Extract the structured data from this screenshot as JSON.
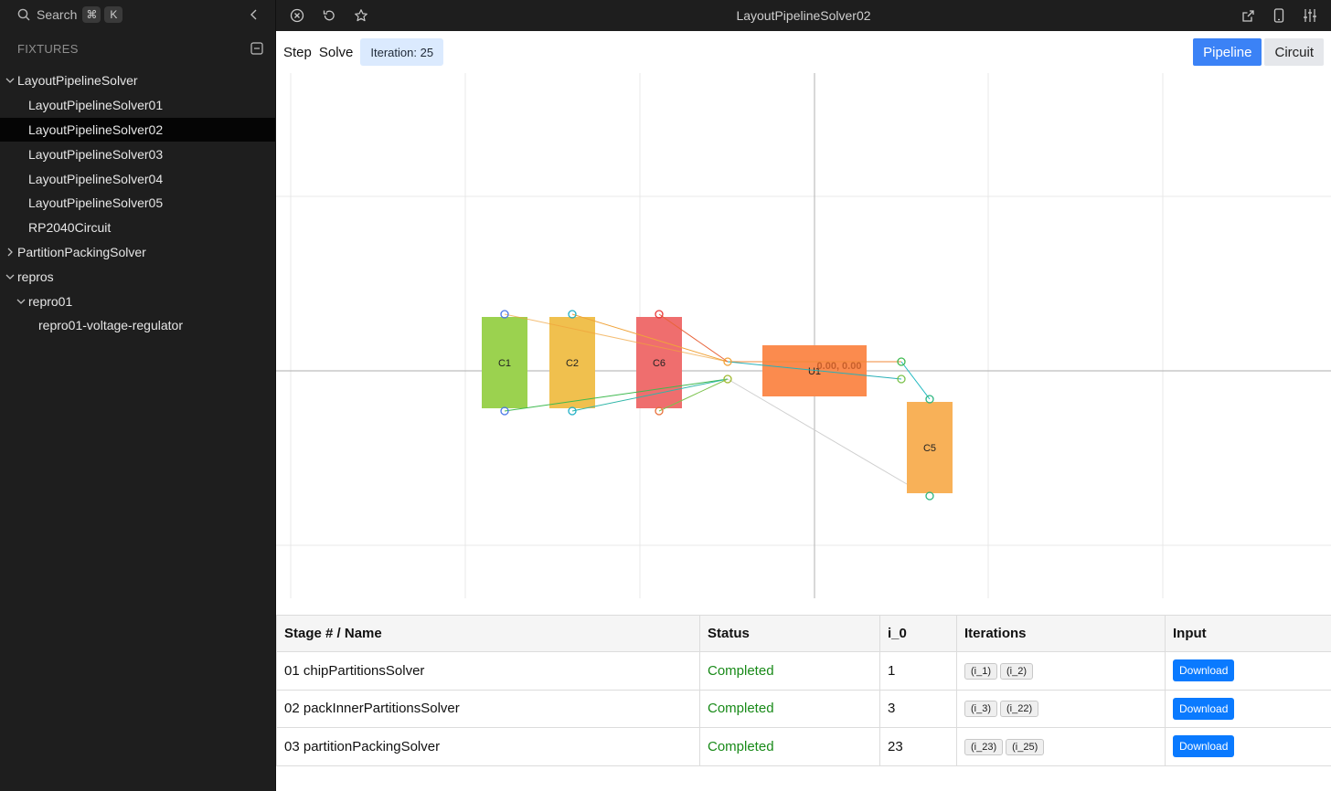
{
  "sidebar": {
    "search_label": "Search",
    "shortcut_keys": [
      "⌘",
      "K"
    ],
    "section_label": "FIXTURES",
    "tree": [
      {
        "label": "LayoutPipelineSolver",
        "level": 0,
        "chevron": "down"
      },
      {
        "label": "LayoutPipelineSolver01",
        "level": 1
      },
      {
        "label": "LayoutPipelineSolver02",
        "level": 1,
        "selected": true
      },
      {
        "label": "LayoutPipelineSolver03",
        "level": 1
      },
      {
        "label": "LayoutPipelineSolver04",
        "level": 1
      },
      {
        "label": "LayoutPipelineSolver05",
        "level": 1
      },
      {
        "label": "RP2040Circuit",
        "level": 1
      },
      {
        "label": "PartitionPackingSolver",
        "level": 0,
        "chevron": "right"
      },
      {
        "label": "repros",
        "level": 0,
        "chevron": "down"
      },
      {
        "label": "repro01",
        "level": 1,
        "chevron": "down"
      },
      {
        "label": "repro01-voltage-regulator",
        "level": 2
      }
    ]
  },
  "topbar": {
    "title": "LayoutPipelineSolver02",
    "left_icons": [
      "close-circle-icon",
      "refresh-icon",
      "star-icon"
    ],
    "right_icons": [
      "external-link-icon",
      "mobile-icon",
      "sliders-icon"
    ]
  },
  "toolbar": {
    "step_label": "Step",
    "solve_label": "Solve",
    "iteration_label": "Iteration: 25",
    "tabs": [
      {
        "label": "Pipeline",
        "active": true
      },
      {
        "label": "Circuit",
        "active": false
      }
    ]
  },
  "canvas": {
    "origin_label": "0.00, 0.00",
    "components": [
      {
        "id": "C1",
        "label": "C1",
        "color": "#9bd24f"
      },
      {
        "id": "C2",
        "label": "C2",
        "color": "#f0c04e"
      },
      {
        "id": "C6",
        "label": "C6",
        "color": "#ef6e6e"
      },
      {
        "id": "U1",
        "label": "U1",
        "color": "#fb8b4e"
      },
      {
        "id": "C5",
        "label": "C5",
        "color": "#f8b158"
      }
    ]
  },
  "table": {
    "headers": [
      "Stage # / Name",
      "Status",
      "i_0",
      "Iterations",
      "Input"
    ],
    "rows": [
      {
        "name": "01 chipPartitionsSolver",
        "status": "Completed",
        "i0": "1",
        "iterations": [
          "(i_1)",
          "(i_2)"
        ],
        "input": "Download"
      },
      {
        "name": "02 packInnerPartitionsSolver",
        "status": "Completed",
        "i0": "3",
        "iterations": [
          "(i_3)",
          "(i_22)"
        ],
        "input": "Download"
      },
      {
        "name": "03 partitionPackingSolver",
        "status": "Completed",
        "i0": "23",
        "iterations": [
          "(i_23)",
          "(i_25)"
        ],
        "input": "Download"
      }
    ]
  },
  "colors": {
    "accent": "#3b82f6",
    "status_completed": "#188a18",
    "download": "#0a7aff",
    "sidebar_bg": "#1e1e1e"
  }
}
